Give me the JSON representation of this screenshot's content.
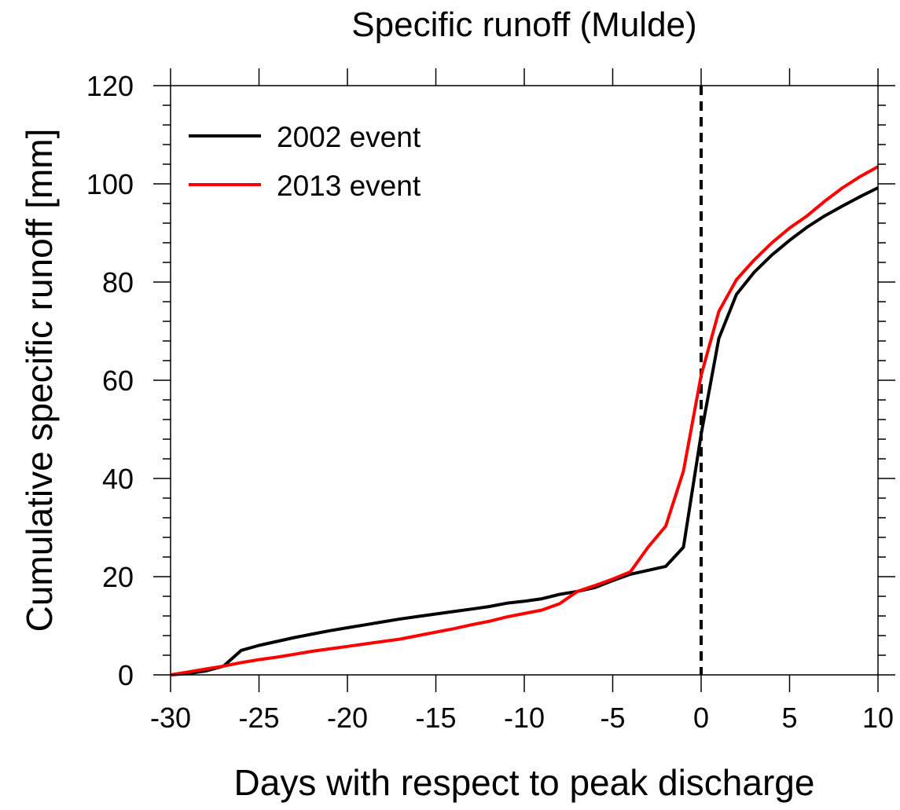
{
  "chart_data": {
    "type": "line",
    "title": "Specific runoff (Mulde)",
    "xlabel": "Days with respect to peak discharge",
    "ylabel": "Cumulative specific runoff [mm]",
    "xlim": [
      -30,
      10
    ],
    "ylim": [
      0,
      120
    ],
    "xticks": [
      -30,
      -25,
      -20,
      -15,
      -10,
      -5,
      0,
      5,
      10
    ],
    "yticks": [
      0,
      20,
      40,
      60,
      80,
      100,
      120
    ],
    "grid": false,
    "legend_position": "top-left",
    "reference_line": {
      "x": 0,
      "style": "dashed",
      "color": "#000000"
    },
    "x": [
      -30,
      -29,
      -28,
      -27,
      -26,
      -25,
      -24,
      -23,
      -22,
      -21,
      -20,
      -19,
      -18,
      -17,
      -16,
      -15,
      -14,
      -13,
      -12,
      -11,
      -10,
      -9,
      -8,
      -7,
      -6,
      -5,
      -4,
      -3,
      -2,
      -1,
      0,
      1,
      2,
      3,
      4,
      5,
      6,
      7,
      8,
      9,
      10
    ],
    "series": [
      {
        "name": "2002 event",
        "color": "#000000",
        "values": [
          0,
          0.3,
          0.8,
          1.8,
          5.0,
          6.0,
          6.8,
          7.6,
          8.3,
          9.0,
          9.6,
          10.2,
          10.8,
          11.4,
          11.9,
          12.4,
          12.9,
          13.4,
          13.9,
          14.6,
          15.0,
          15.5,
          16.4,
          17.0,
          17.8,
          19.2,
          20.5,
          21.3,
          22.1,
          26.0,
          49.0,
          68.5,
          77.5,
          82.0,
          85.5,
          88.5,
          91.2,
          93.5,
          95.5,
          97.4,
          99.2
        ]
      },
      {
        "name": "2013 event",
        "color": "#ff0000",
        "values": [
          0,
          0.6,
          1.2,
          1.8,
          2.5,
          3.1,
          3.6,
          4.2,
          4.8,
          5.3,
          5.8,
          6.3,
          6.8,
          7.3,
          8.0,
          8.7,
          9.4,
          10.2,
          10.9,
          11.8,
          12.5,
          13.2,
          14.5,
          17.0,
          18.2,
          19.5,
          21.0,
          26.0,
          30.3,
          41.5,
          61.0,
          74.0,
          80.5,
          84.5,
          88.0,
          91.0,
          93.5,
          96.5,
          99.2,
          101.5,
          103.5
        ]
      }
    ]
  }
}
